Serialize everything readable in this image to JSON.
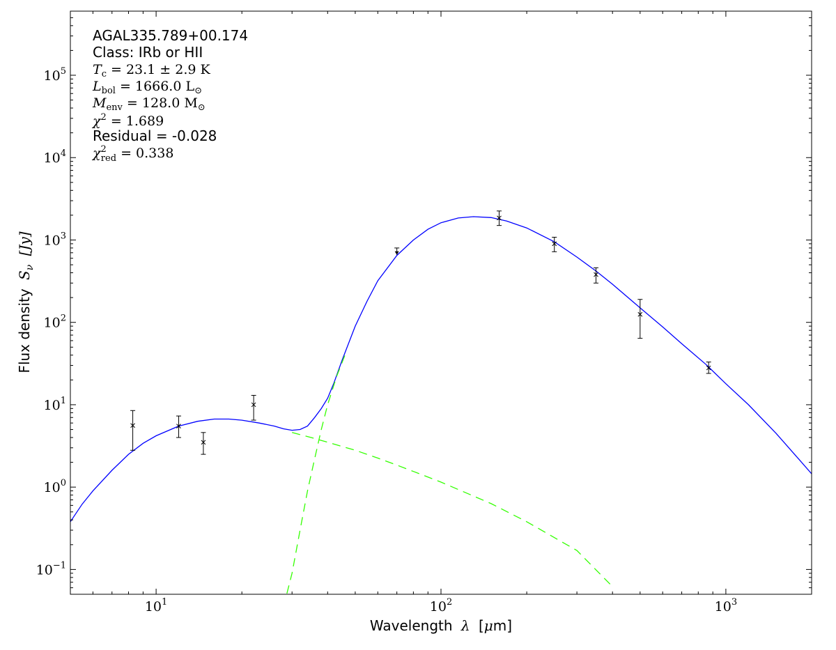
{
  "chart_data": {
    "type": "line",
    "xscale": "log",
    "yscale": "log",
    "xlim": [
      5,
      2000
    ],
    "ylim": [
      0.05,
      600000
    ],
    "xlabel_text": "Wavelength",
    "xlabel_symbol": "λ",
    "xlabel_unit_open": "[",
    "xlabel_unit_mu": "μ",
    "xlabel_unit_rest": "m]",
    "ylabel_text": "Flux density",
    "ylabel_symbol": "S",
    "ylabel_sub": "ν",
    "ylabel_unit": "[Jy]",
    "x_ticks": [
      {
        "value": 10,
        "label_base": "10",
        "label_exp": "1"
      },
      {
        "value": 100,
        "label_base": "10",
        "label_exp": "2"
      },
      {
        "value": 1000,
        "label_base": "10",
        "label_exp": "3"
      }
    ],
    "y_ticks": [
      {
        "value": 0.1,
        "label_base": "10",
        "label_exp": "−1"
      },
      {
        "value": 1,
        "label_base": "10",
        "label_exp": "0"
      },
      {
        "value": 10,
        "label_base": "10",
        "label_exp": "1"
      },
      {
        "value": 100,
        "label_base": "10",
        "label_exp": "2"
      },
      {
        "value": 1000,
        "label_base": "10",
        "label_exp": "3"
      },
      {
        "value": 10000,
        "label_base": "10",
        "label_exp": "4"
      },
      {
        "value": 100000,
        "label_base": "10",
        "label_exp": "5"
      }
    ],
    "annotations": {
      "source": "AGAL335.789+00.174",
      "class_line": "Class: IRb or HII",
      "tc_sym": "T",
      "tc_sub": "c",
      "tc_val": " = 23.1 ± 2.9 K",
      "lbol_sym": "L",
      "lbol_sub": "bol",
      "lbol_val": " = 1666.0 L",
      "lbol_unit_sub": "⊙",
      "menv_sym": "M",
      "menv_sub": "env",
      "menv_val": " = 128.0 M",
      "menv_unit_sub": "⊙",
      "chi2_sym": "χ",
      "chi2_sup": "2",
      "chi2_val": " = 1.689",
      "residual": "Residual = -0.028",
      "chired_sym": "χ",
      "chired_sup": "2",
      "chired_sub": "red",
      "chired_val": " = 0.338"
    },
    "series": [
      {
        "style": "solid",
        "color": "#0000ff",
        "points": [
          [
            5,
            0.38
          ],
          [
            5.5,
            0.62
          ],
          [
            6,
            0.9
          ],
          [
            7,
            1.6
          ],
          [
            8,
            2.5
          ],
          [
            9,
            3.4
          ],
          [
            10,
            4.2
          ],
          [
            12,
            5.5
          ],
          [
            14,
            6.3
          ],
          [
            16,
            6.7
          ],
          [
            18,
            6.7
          ],
          [
            20,
            6.5
          ],
          [
            23,
            6.0
          ],
          [
            26,
            5.5
          ],
          [
            28,
            5.1
          ],
          [
            30,
            4.9
          ],
          [
            32,
            5.0
          ],
          [
            34,
            5.5
          ],
          [
            36,
            7
          ],
          [
            38,
            9
          ],
          [
            40,
            12
          ],
          [
            42,
            18
          ],
          [
            45,
            35
          ],
          [
            50,
            90
          ],
          [
            55,
            180
          ],
          [
            60,
            320
          ],
          [
            70,
            650
          ],
          [
            80,
            1000
          ],
          [
            90,
            1350
          ],
          [
            100,
            1620
          ],
          [
            115,
            1850
          ],
          [
            130,
            1920
          ],
          [
            150,
            1870
          ],
          [
            170,
            1700
          ],
          [
            200,
            1400
          ],
          [
            250,
            950
          ],
          [
            300,
            620
          ],
          [
            350,
            420
          ],
          [
            400,
            290
          ],
          [
            500,
            150
          ],
          [
            600,
            88
          ],
          [
            700,
            55
          ],
          [
            850,
            31
          ],
          [
            1000,
            18
          ],
          [
            1200,
            10
          ],
          [
            1500,
            4.5
          ],
          [
            1800,
            2.2
          ],
          [
            2000,
            1.45
          ]
        ]
      },
      {
        "style": "dashed",
        "color": "#33ff00",
        "points": [
          [
            28,
            0.035
          ],
          [
            30,
            0.09
          ],
          [
            32,
            0.3
          ],
          [
            34,
            0.9
          ],
          [
            36,
            2.2
          ],
          [
            38,
            5
          ],
          [
            40,
            10
          ],
          [
            43,
            22
          ],
          [
            46,
            40
          ]
        ]
      },
      {
        "style": "dashed",
        "color": "#33ff00",
        "points": [
          [
            30,
            4.6
          ],
          [
            35,
            4.0
          ],
          [
            40,
            3.5
          ],
          [
            50,
            2.8
          ],
          [
            60,
            2.25
          ],
          [
            70,
            1.85
          ],
          [
            80,
            1.55
          ],
          [
            100,
            1.15
          ],
          [
            150,
            0.63
          ],
          [
            200,
            0.38
          ],
          [
            300,
            0.17
          ],
          [
            400,
            0.062
          ]
        ]
      }
    ],
    "data_points": [
      {
        "x": 8.28,
        "y": 5.6,
        "ylo": 2.8,
        "yhi": 8.5
      },
      {
        "x": 12.0,
        "y": 5.5,
        "ylo": 4.0,
        "yhi": 7.3
      },
      {
        "x": 14.65,
        "y": 3.5,
        "ylo": 2.5,
        "yhi": 4.6
      },
      {
        "x": 22.0,
        "y": 10.0,
        "ylo": 6.5,
        "yhi": 13.0
      },
      {
        "x": 160,
        "y": 1850,
        "ylo": 1500,
        "yhi": 2250
      },
      {
        "x": 250,
        "y": 900,
        "ylo": 720,
        "yhi": 1080
      },
      {
        "x": 350,
        "y": 380,
        "ylo": 300,
        "yhi": 460
      },
      {
        "x": 500,
        "y": 125,
        "ylo": 64,
        "yhi": 190
      },
      {
        "x": 870,
        "y": 28,
        "ylo": 24,
        "yhi": 33
      }
    ],
    "upper_limits": [
      {
        "x": 70,
        "y": 800,
        "arrow_to": 660
      }
    ]
  }
}
